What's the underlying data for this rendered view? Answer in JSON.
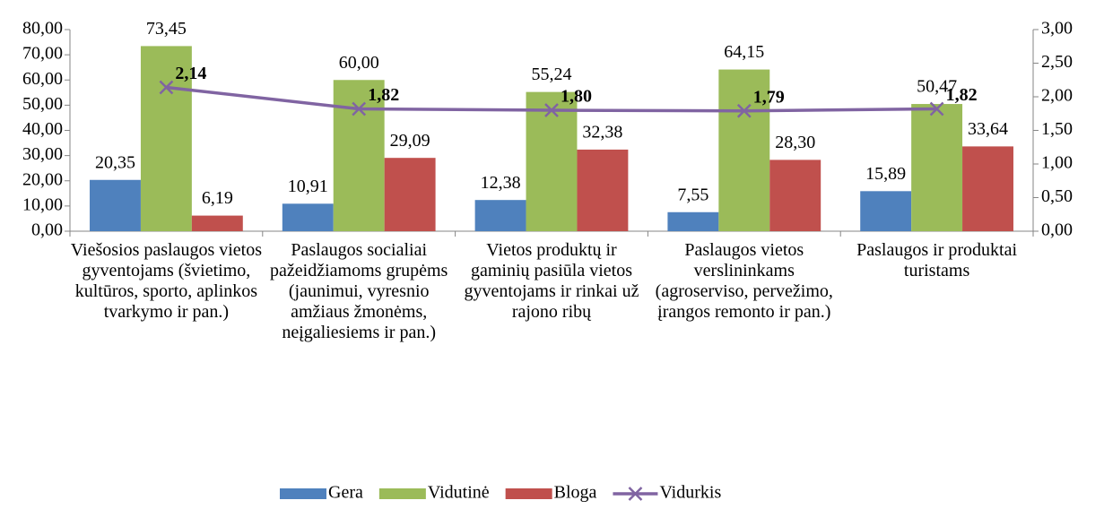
{
  "chart_data": {
    "type": "bar",
    "categories": [
      "Viešosios paslaugos vietos gyventojams (švietimo, kultūros, sporto, aplinkos tvarkymo ir pan.)",
      "Paslaugos socialiai pažeidžiamoms grupėms (jaunimui, vyresnio amžiaus žmonėms, neįgaliesiems ir pan.)",
      "Vietos produktų ir gaminių pasiūla vietos gyventojams ir rinkai už rajono ribų",
      "Paslaugos vietos verslininkams (agroserviso, pervežimo, įrangos remonto ir pan.)",
      "Paslaugos ir produktai turistams"
    ],
    "series": [
      {
        "name": "Gera",
        "type": "bar",
        "color": "#4f81bd",
        "values": [
          20.35,
          10.91,
          12.38,
          7.55,
          15.89
        ],
        "value_labels": [
          "20,35",
          "10,91",
          "12,38",
          "7,55",
          "15,89"
        ]
      },
      {
        "name": "Vidutinė",
        "type": "bar",
        "color": "#9bbb59",
        "values": [
          73.45,
          60.0,
          55.24,
          64.15,
          50.47
        ],
        "value_labels": [
          "73,45",
          "60,00",
          "55,24",
          "64,15",
          "50,47"
        ]
      },
      {
        "name": "Bloga",
        "type": "bar",
        "color": "#c0504d",
        "values": [
          6.19,
          29.09,
          32.38,
          28.3,
          33.64
        ],
        "value_labels": [
          "6,19",
          "29,09",
          "32,38",
          "28,30",
          "33,64"
        ]
      },
      {
        "name": "Vidurkis",
        "type": "line",
        "axis": "y2",
        "color": "#8064a2",
        "values": [
          2.14,
          1.82,
          1.8,
          1.79,
          1.82
        ],
        "value_labels": [
          "2,14",
          "1,82",
          "1,80",
          "1,79",
          "1,82"
        ]
      }
    ],
    "ylim": [
      0,
      80
    ],
    "yticks": [
      {
        "value": 0,
        "label": "0,00"
      },
      {
        "value": 10,
        "label": "10,00"
      },
      {
        "value": 20,
        "label": "20,00"
      },
      {
        "value": 30,
        "label": "30,00"
      },
      {
        "value": 40,
        "label": "40,00"
      },
      {
        "value": 50,
        "label": "50,00"
      },
      {
        "value": 60,
        "label": "60,00"
      },
      {
        "value": 70,
        "label": "70,00"
      },
      {
        "value": 80,
        "label": "80,00"
      }
    ],
    "y2lim": [
      0,
      3
    ],
    "y2ticks": [
      {
        "value": 0,
        "label": "0,00"
      },
      {
        "value": 0.5,
        "label": "0,50"
      },
      {
        "value": 1,
        "label": "1,00"
      },
      {
        "value": 1.5,
        "label": "1,50"
      },
      {
        "value": 2,
        "label": "2,00"
      },
      {
        "value": 2.5,
        "label": "2,50"
      },
      {
        "value": 3,
        "label": "3,00"
      }
    ],
    "legend": "bottom",
    "grid": false
  }
}
